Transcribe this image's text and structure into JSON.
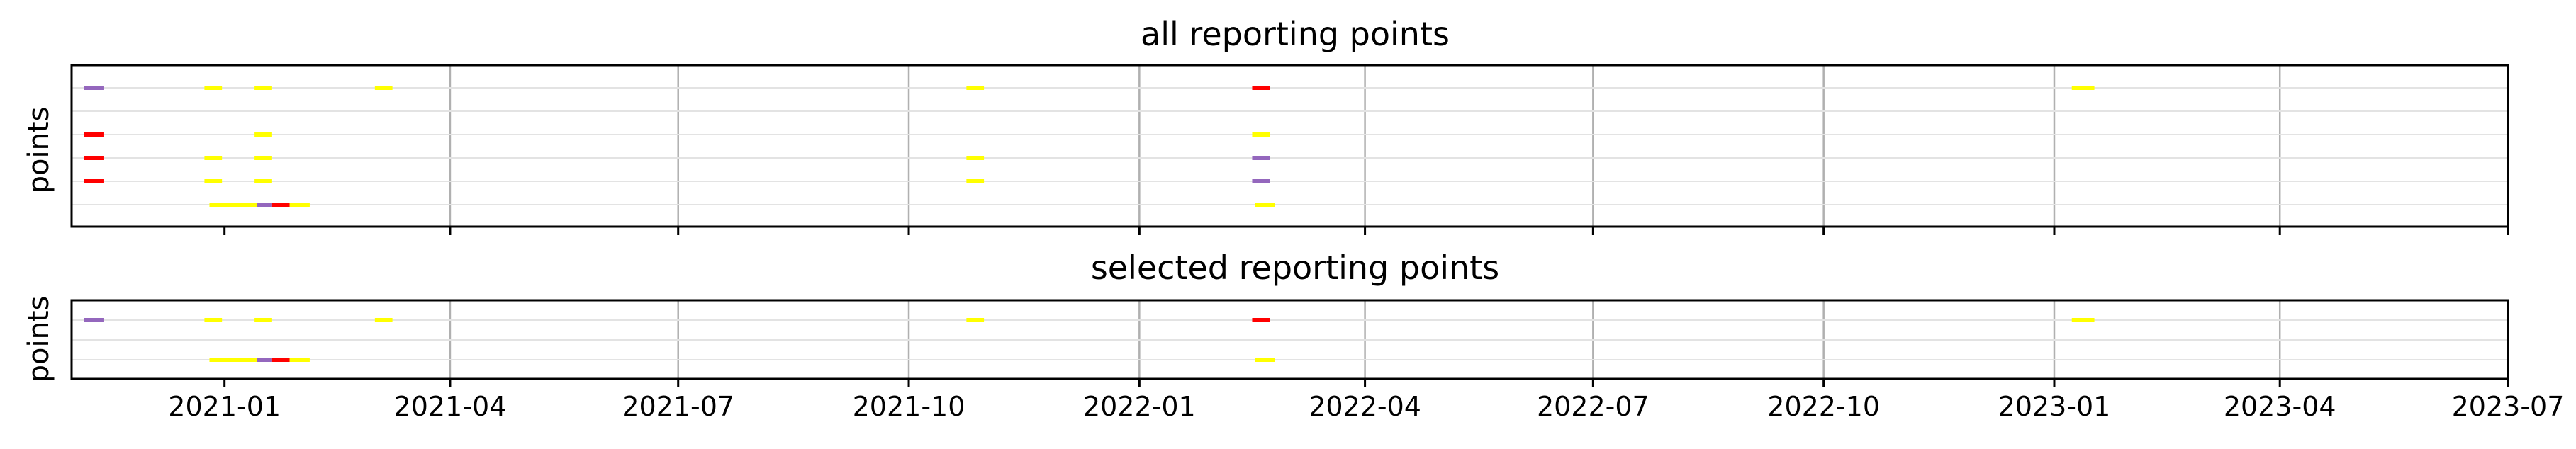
{
  "chart_data": [
    {
      "type": "timeline",
      "title": "all reporting points",
      "ylabel": "points",
      "xlim": [
        "2020-11-01",
        "2023-07-01"
      ],
      "x_ticks": [
        "2021-01",
        "2021-04",
        "2021-07",
        "2021-10",
        "2022-01",
        "2022-04",
        "2022-07",
        "2022-10",
        "2023-01",
        "2023-04",
        "2023-07"
      ],
      "row_count": 6,
      "grid": "vertical lines at x ticks",
      "segments": [
        {
          "row": 0,
          "start": "2020-11-06",
          "end": "2020-11-14",
          "color": "#9467bd"
        },
        {
          "row": 0,
          "start": "2020-12-24",
          "end": "2020-12-31",
          "color": "#ffff00"
        },
        {
          "row": 0,
          "start": "2021-01-13",
          "end": "2021-01-20",
          "color": "#ffff00"
        },
        {
          "row": 0,
          "start": "2021-03-02",
          "end": "2021-03-09",
          "color": "#ffff00"
        },
        {
          "row": 0,
          "start": "2021-10-24",
          "end": "2021-10-31",
          "color": "#ffff00"
        },
        {
          "row": 0,
          "start": "2022-02-15",
          "end": "2022-02-22",
          "color": "#ff0000"
        },
        {
          "row": 0,
          "start": "2023-01-08",
          "end": "2023-01-17",
          "color": "#ffff00"
        },
        {
          "row": 2,
          "start": "2020-11-06",
          "end": "2020-11-14",
          "color": "#ff0000"
        },
        {
          "row": 2,
          "start": "2021-01-13",
          "end": "2021-01-20",
          "color": "#ffff00"
        },
        {
          "row": 2,
          "start": "2022-02-15",
          "end": "2022-02-22",
          "color": "#ffff00"
        },
        {
          "row": 3,
          "start": "2020-11-06",
          "end": "2020-11-14",
          "color": "#ff0000"
        },
        {
          "row": 3,
          "start": "2020-12-24",
          "end": "2020-12-31",
          "color": "#ffff00"
        },
        {
          "row": 3,
          "start": "2021-01-13",
          "end": "2021-01-20",
          "color": "#ffff00"
        },
        {
          "row": 3,
          "start": "2021-10-24",
          "end": "2021-10-31",
          "color": "#ffff00"
        },
        {
          "row": 3,
          "start": "2022-02-15",
          "end": "2022-02-22",
          "color": "#9467bd"
        },
        {
          "row": 4,
          "start": "2020-11-06",
          "end": "2020-11-14",
          "color": "#ff0000"
        },
        {
          "row": 4,
          "start": "2020-12-24",
          "end": "2020-12-31",
          "color": "#ffff00"
        },
        {
          "row": 4,
          "start": "2021-01-13",
          "end": "2021-01-20",
          "color": "#ffff00"
        },
        {
          "row": 4,
          "start": "2021-10-24",
          "end": "2021-10-31",
          "color": "#ffff00"
        },
        {
          "row": 4,
          "start": "2022-02-15",
          "end": "2022-02-22",
          "color": "#9467bd"
        },
        {
          "row": 5,
          "start": "2020-12-26",
          "end": "2021-01-14",
          "color": "#ffff00"
        },
        {
          "row": 5,
          "start": "2021-01-14",
          "end": "2021-01-20",
          "color": "#9467bd"
        },
        {
          "row": 5,
          "start": "2021-01-20",
          "end": "2021-01-27",
          "color": "#ff0000"
        },
        {
          "row": 5,
          "start": "2021-01-27",
          "end": "2021-02-04",
          "color": "#ffff00"
        },
        {
          "row": 5,
          "start": "2022-02-16",
          "end": "2022-02-24",
          "color": "#ffff00"
        }
      ]
    },
    {
      "type": "timeline",
      "title": "selected reporting points",
      "ylabel": "points",
      "xlim": [
        "2020-11-01",
        "2023-07-01"
      ],
      "x_ticks": [
        "2021-01",
        "2021-04",
        "2021-07",
        "2021-10",
        "2022-01",
        "2022-04",
        "2022-07",
        "2022-10",
        "2023-01",
        "2023-04",
        "2023-07"
      ],
      "row_count": 3,
      "grid": "vertical lines at x ticks",
      "segments": [
        {
          "row": 0,
          "start": "2020-11-06",
          "end": "2020-11-14",
          "color": "#9467bd"
        },
        {
          "row": 0,
          "start": "2020-12-24",
          "end": "2020-12-31",
          "color": "#ffff00"
        },
        {
          "row": 0,
          "start": "2021-01-13",
          "end": "2021-01-20",
          "color": "#ffff00"
        },
        {
          "row": 0,
          "start": "2021-03-02",
          "end": "2021-03-09",
          "color": "#ffff00"
        },
        {
          "row": 0,
          "start": "2021-10-24",
          "end": "2021-10-31",
          "color": "#ffff00"
        },
        {
          "row": 0,
          "start": "2022-02-15",
          "end": "2022-02-22",
          "color": "#ff0000"
        },
        {
          "row": 0,
          "start": "2023-01-08",
          "end": "2023-01-17",
          "color": "#ffff00"
        },
        {
          "row": 2,
          "start": "2020-12-26",
          "end": "2021-01-14",
          "color": "#ffff00"
        },
        {
          "row": 2,
          "start": "2021-01-14",
          "end": "2021-01-20",
          "color": "#9467bd"
        },
        {
          "row": 2,
          "start": "2021-01-20",
          "end": "2021-01-27",
          "color": "#ff0000"
        },
        {
          "row": 2,
          "start": "2021-01-27",
          "end": "2021-02-04",
          "color": "#ffff00"
        },
        {
          "row": 2,
          "start": "2022-02-16",
          "end": "2022-02-24",
          "color": "#ffff00"
        }
      ]
    }
  ]
}
